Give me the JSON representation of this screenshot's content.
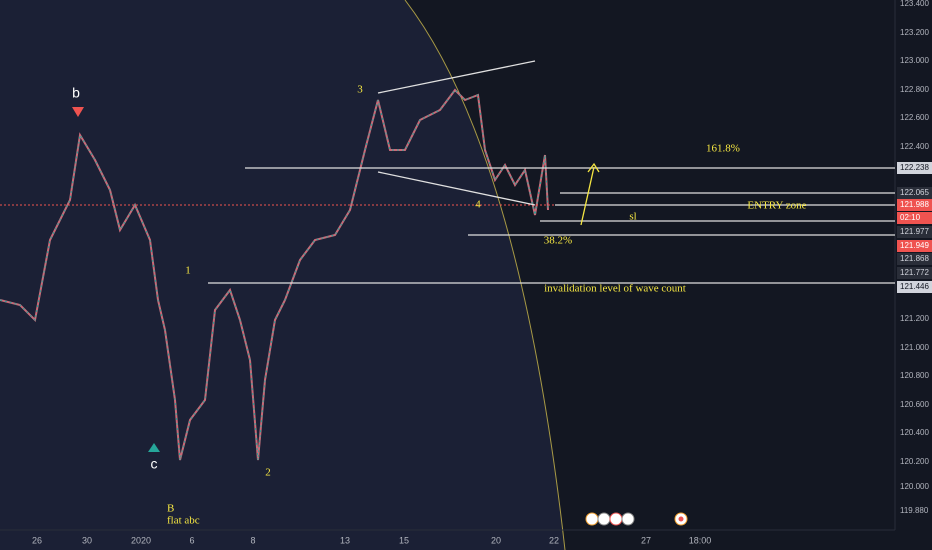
{
  "price_axis": [
    "123.400",
    "123.200",
    "123.000",
    "122.800",
    "122.600",
    "122.400",
    "122.238",
    "122.065",
    "121.988",
    "02:10",
    "121.977",
    "121.949",
    "121.868",
    "121.772",
    "121.446",
    "121.200",
    "121.000",
    "120.800",
    "120.600",
    "120.400",
    "120.200",
    "120.000",
    "119.880"
  ],
  "time_axis": [
    "26",
    "30",
    "2020",
    "6",
    "8",
    "13",
    "15",
    "20",
    "22",
    "27",
    "18:00"
  ],
  "annotations": [
    "b",
    "c",
    "1",
    "2",
    "3",
    "4",
    "161.8%",
    "ENTRY zone",
    "sl",
    "38.2%",
    "invalidation level of wave count",
    "B",
    "flat abc"
  ]
}
